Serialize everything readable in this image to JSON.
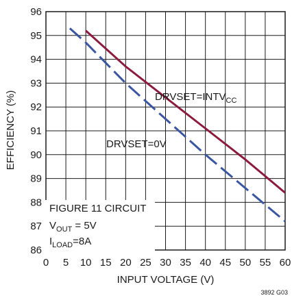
{
  "chart_data": {
    "type": "line",
    "xlabel": "INPUT VOLTAGE (V)",
    "ylabel": "EFFICIENCY (%)",
    "xlim": [
      0,
      60
    ],
    "ylim": [
      86,
      96
    ],
    "xticks": [
      0,
      5,
      10,
      15,
      20,
      25,
      30,
      35,
      40,
      45,
      50,
      55,
      60
    ],
    "yticks": [
      86,
      87,
      88,
      89,
      90,
      91,
      92,
      93,
      94,
      95,
      96
    ],
    "grid": true,
    "series": [
      {
        "label": {
          "main": "DRVSET=INTV",
          "sub": "CC"
        },
        "color": "#8b1a3c",
        "style": "solid",
        "x": [
          10,
          20,
          30,
          40,
          50,
          60
        ],
        "y": [
          95.2,
          93.7,
          92.4,
          91.1,
          89.8,
          88.4
        ]
      },
      {
        "label": {
          "main": "DRVSET=0V",
          "sub": ""
        },
        "color": "#3a55a0",
        "style": "dashed",
        "x": [
          6,
          10,
          20,
          30,
          40,
          50,
          60
        ],
        "y": [
          95.3,
          94.7,
          93.0,
          91.5,
          90.0,
          88.6,
          87.2
        ]
      }
    ],
    "annotations": [
      {
        "main": "FIGURE 11 CIRCUIT",
        "sub": "",
        "tail": ""
      },
      {
        "main": "V",
        "sub": "OUT",
        "tail": " = 5V"
      },
      {
        "main": "I",
        "sub": "LOAD",
        "tail": "=8A"
      }
    ],
    "figure_id": "3892 G03"
  }
}
